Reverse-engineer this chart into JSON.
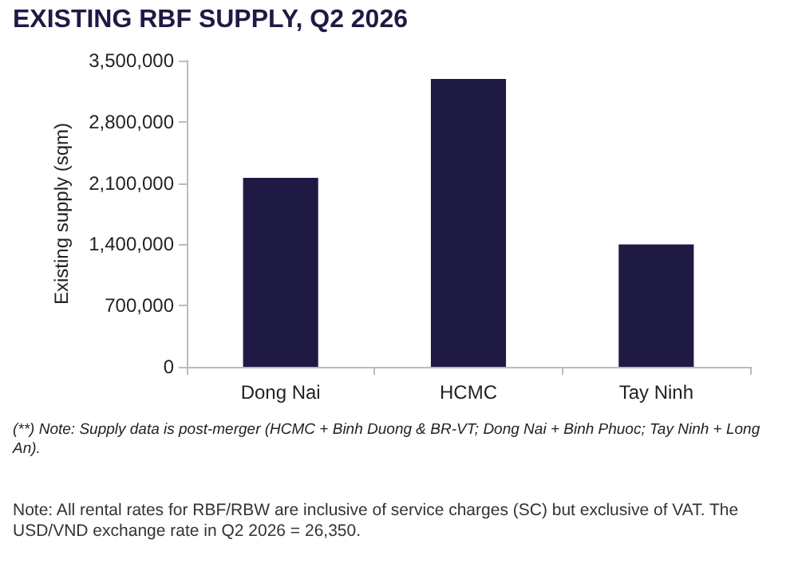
{
  "chart_data": {
    "type": "bar",
    "title": "EXISTING RBF SUPPLY, Q2 2026",
    "ylabel": "Existing supply (sqm)",
    "categories": [
      "Dong Nai",
      "HCMC",
      "Tay Ninh"
    ],
    "values": [
      2160000,
      3290000,
      1400000
    ],
    "color": "#1f1a44",
    "ylim": [
      0,
      3500000
    ],
    "yticks": [
      0,
      {
        "value": 700000,
        "label": "700,000"
      },
      {
        "value": 1400000,
        "label": "1,400,000"
      },
      {
        "value": 2100000,
        "label": "2,100,000"
      },
      {
        "value": 2800000,
        "label": "2,800,000"
      },
      {
        "value": 3500000,
        "label": "3,500,000"
      }
    ],
    "grid": false,
    "annotations": [
      "(**) Note: Supply data is post-merger (HCMC + Binh Duong & BR-VT; Dong Nai + Binh Phuoc; Tay Ninh + Long An).",
      "Note: All rental rates for RBF/RBW are inclusive of service charges (SC) but exclusive of VAT. The USD/VND exchange rate in Q2 2026 = 26,350."
    ]
  }
}
